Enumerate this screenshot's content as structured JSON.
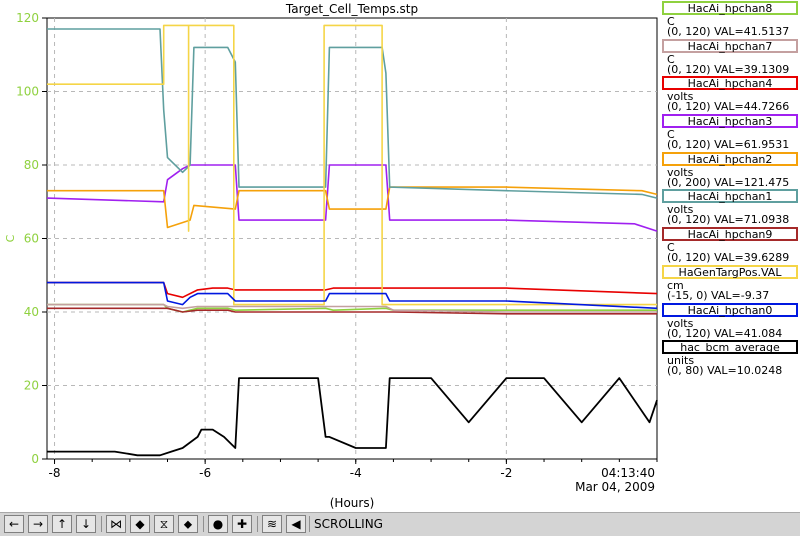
{
  "chart_data": {
    "type": "line",
    "title": "Target_Cell_Temps.stp",
    "ylabel": "C",
    "xlabel": "(Hours)",
    "ylim": [
      0,
      120
    ],
    "xlim": [
      -8.1,
      0
    ],
    "yticks": [
      "0",
      "20",
      "40",
      "60",
      "80",
      "100",
      "120"
    ],
    "xticks": [
      "-8",
      "-6",
      "-4",
      "-2"
    ],
    "time_label": "04:13:40",
    "date_label": "Mar 04, 2009",
    "grid": true,
    "series": [
      {
        "name": "HacAi_hpchan8",
        "unit": "C",
        "range": "(0, 120)",
        "val": "VAL=41.5137",
        "color": "#8fd13f",
        "x": [
          -8.1,
          -6.55,
          -6.5,
          -6.3,
          -6.1,
          -5.9,
          -5.7,
          -5.6,
          -4.4,
          -4.3,
          -3.6,
          -3.5,
          -2,
          0
        ],
        "y": [
          42,
          42,
          41,
          40,
          41,
          41,
          41,
          40.5,
          41,
          40.5,
          41,
          40.5,
          40.5,
          40.5
        ]
      },
      {
        "name": "HacAi_hpchan7",
        "unit": "C",
        "range": "(0, 120)",
        "val": "VAL=39.1309",
        "color": "#c4a0a0",
        "x": [
          -8.1,
          -6.55,
          -6.5,
          -6.3,
          -6.1,
          -5.9,
          -5.7,
          -5.6,
          -4.4,
          -4.3,
          -3.6,
          -3.5,
          -2,
          0
        ],
        "y": [
          42,
          42,
          41.5,
          41,
          41.5,
          41.5,
          41.5,
          41.5,
          41.5,
          41.5,
          41.5,
          40.5,
          40,
          40
        ]
      },
      {
        "name": "HacAi_hpchan4",
        "unit": "volts",
        "range": "(0, 120)",
        "val": "VAL=44.7266",
        "color": "#e80000",
        "x": [
          -8.1,
          -6.55,
          -6.5,
          -6.3,
          -6.1,
          -5.9,
          -5.7,
          -5.6,
          -4.4,
          -4.3,
          -3.6,
          -3.5,
          -2,
          0
        ],
        "y": [
          48,
          48,
          45,
          44,
          46,
          46.5,
          46.5,
          46,
          46,
          46.5,
          46.5,
          46.5,
          46.5,
          45
        ]
      },
      {
        "name": "HacAi_hpchan3",
        "unit": "C",
        "range": "(0, 120)",
        "val": "VAL=61.9531",
        "color": "#a020f0",
        "x": [
          -8.1,
          -6.55,
          -6.5,
          -6.3,
          -6.2,
          -6.1,
          -5.7,
          -5.6,
          -5.55,
          -4.4,
          -4.35,
          -3.6,
          -3.55,
          -2,
          -0.3,
          0
        ],
        "y": [
          71,
          70,
          76,
          79,
          80,
          80,
          80,
          80,
          65,
          65,
          80,
          80,
          65,
          65,
          64,
          62
        ]
      },
      {
        "name": "HacAi_hpchan2",
        "unit": "volts",
        "range": "(0, 200)",
        "val": "VAL=121.475",
        "color": "#f5a10a",
        "x": [
          -8.1,
          -6.55,
          -6.5,
          -6.2,
          -6.15,
          -5.6,
          -5.55,
          -4.4,
          -4.35,
          -3.6,
          -3.55,
          -2,
          -0.2,
          0
        ],
        "y": [
          73,
          73,
          63,
          65,
          69,
          68,
          73,
          73,
          68,
          68,
          74,
          74,
          73,
          72
        ]
      },
      {
        "name": "HacAi_hpchan1",
        "unit": "volts",
        "range": "(0, 120)",
        "val": "VAL=71.0938",
        "color": "#5f9f9f",
        "x": [
          -8.1,
          -6.6,
          -6.55,
          -6.5,
          -6.3,
          -6.2,
          -6.15,
          -5.7,
          -5.6,
          -5.55,
          -4.4,
          -4.35,
          -3.65,
          -3.6,
          -3.55,
          -2,
          -0.2,
          0
        ],
        "y": [
          117,
          117,
          95,
          82,
          78,
          80,
          112,
          112,
          108,
          74,
          74,
          112,
          112,
          105,
          74,
          73,
          72,
          71
        ]
      },
      {
        "name": "HacAi_hpchan9",
        "unit": "C",
        "range": "(0, 120)",
        "val": "VAL=39.6289",
        "color": "#a52a2a",
        "x": [
          -8.1,
          -6.55,
          -6.5,
          -6.3,
          -6.1,
          -5.9,
          -5.7,
          -5.6,
          -4.4,
          -4.3,
          -3.6,
          -3.5,
          -2,
          0
        ],
        "y": [
          41,
          41,
          41,
          40,
          40.5,
          40.5,
          40.5,
          40,
          40,
          40,
          40,
          40,
          39.5,
          39.5
        ]
      },
      {
        "name": "HaGenTargPos.VAL",
        "unit": "cm",
        "range": "(-15, 0)",
        "val": "VAL=-9.37",
        "color": "#f5d547",
        "x": [
          -8.1,
          -6.55,
          -6.55,
          -6.22,
          -6.22,
          -6.22,
          -6.22,
          -5.62,
          -5.62,
          -4.42,
          -4.42,
          -3.65,
          -3.65,
          0
        ],
        "y": [
          102,
          102,
          118,
          118,
          62,
          118,
          118,
          118,
          42,
          42,
          118,
          118,
          42,
          42
        ]
      },
      {
        "name": "HacAi_hpchan0",
        "unit": "volts",
        "range": "(0, 120)",
        "val": "VAL=41.084",
        "color": "#0018e0",
        "x": [
          -8.1,
          -6.55,
          -6.5,
          -6.3,
          -6.2,
          -6.1,
          -5.7,
          -5.6,
          -4.4,
          -4.35,
          -3.6,
          -3.55,
          -2,
          0
        ],
        "y": [
          48,
          48,
          43,
          42,
          44,
          45,
          45,
          43,
          43,
          45,
          45,
          43,
          43,
          41
        ]
      },
      {
        "name": "hac_bcm_average",
        "unit": "units",
        "range": "(0, 80)",
        "val": "VAL=10.0248",
        "color": "#000000",
        "x": [
          -8.1,
          -7.2,
          -6.9,
          -6.6,
          -6.45,
          -6.3,
          -6.1,
          -6.05,
          -5.9,
          -5.75,
          -5.6,
          -5.55,
          -4.5,
          -4.4,
          -4.35,
          -4.0,
          -3.65,
          -3.6,
          -3.55,
          -3.0,
          -2.5,
          -2.0,
          -1.5,
          -1.0,
          -0.5,
          -0.1,
          0
        ],
        "y": [
          2,
          2,
          1,
          1,
          2,
          3,
          6,
          8,
          8,
          6,
          3,
          22,
          22,
          6,
          6,
          3,
          3,
          3,
          22,
          22,
          10,
          22,
          22,
          10,
          22,
          10,
          16
        ]
      }
    ]
  },
  "toolbar": {
    "buttons": [
      {
        "name": "scroll-left-button",
        "glyph": "←"
      },
      {
        "name": "scroll-right-button",
        "glyph": "→"
      },
      {
        "name": "scroll-up-button",
        "glyph": "↑"
      },
      {
        "name": "scroll-down-button",
        "glyph": "↓"
      },
      {
        "name": "zoom-x-in-button",
        "glyph": "⋈"
      },
      {
        "name": "zoom-x-out-button",
        "glyph": "◆"
      },
      {
        "name": "zoom-y-in-button",
        "glyph": "⧖"
      },
      {
        "name": "zoom-y-out-button",
        "glyph": "⬥"
      },
      {
        "name": "record-button",
        "glyph": "●"
      },
      {
        "name": "add-button",
        "glyph": "✚"
      },
      {
        "name": "autoscale-button",
        "glyph": "≋"
      },
      {
        "name": "back-button",
        "glyph": "◀"
      }
    ],
    "mode_label": "SCROLLING"
  }
}
